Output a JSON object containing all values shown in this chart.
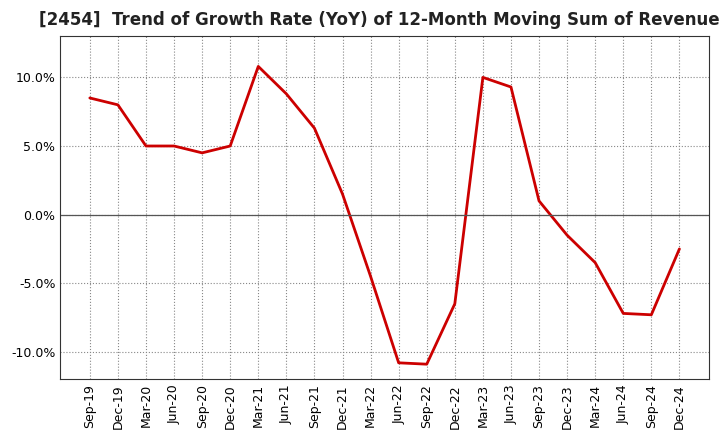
{
  "title": "[2454]  Trend of Growth Rate (YoY) of 12-Month Moving Sum of Revenues",
  "x_labels": [
    "Sep-19",
    "Dec-19",
    "Mar-20",
    "Jun-20",
    "Sep-20",
    "Dec-20",
    "Mar-21",
    "Jun-21",
    "Sep-21",
    "Dec-21",
    "Mar-22",
    "Jun-22",
    "Sep-22",
    "Dec-22",
    "Mar-23",
    "Jun-23",
    "Sep-23",
    "Dec-23",
    "Mar-24",
    "Jun-24",
    "Sep-24",
    "Dec-24"
  ],
  "y_values": [
    8.5,
    8.0,
    5.0,
    5.0,
    4.5,
    5.0,
    10.8,
    8.8,
    6.3,
    1.5,
    -4.5,
    -10.8,
    -10.9,
    -6.5,
    10.0,
    9.3,
    1.0,
    -1.5,
    -3.5,
    -7.2,
    -7.3,
    -2.5
  ],
  "line_color": "#CC0000",
  "line_width": 2.0,
  "ylim": [
    -12,
    13
  ],
  "yticks": [
    -10,
    -5,
    0,
    5,
    10
  ],
  "ytick_labels": [
    "-10.0%",
    "-5.0%",
    "0.0%",
    "5.0%",
    "10.0%"
  ],
  "grid_color": "#888888",
  "background_color": "#ffffff",
  "plot_bg_color": "#ffffff",
  "title_fontsize": 12,
  "tick_fontsize": 9,
  "spine_color": "#333333",
  "zero_line_color": "#555555"
}
